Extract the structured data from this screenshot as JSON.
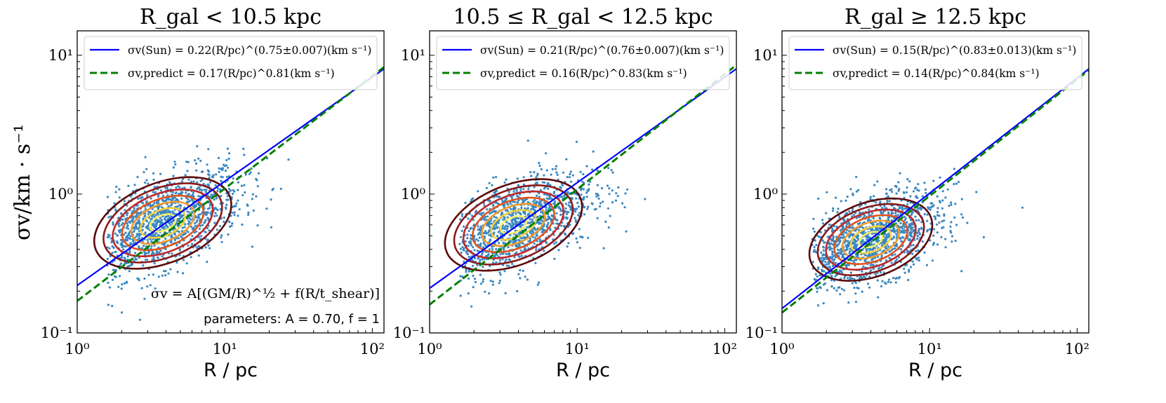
{
  "figure": {
    "ylabel": "σv/km · s⁻¹",
    "colors": {
      "points": "#3a87c0",
      "fit": "#0000ff",
      "predict": "#008000",
      "contours": [
        "#5c0a0a",
        "#8b1a1a",
        "#c0282a",
        "#e2541c",
        "#f39a2e",
        "#f5d13c",
        "#f7ef6a"
      ]
    }
  },
  "chart_data": [
    {
      "type": "scatter",
      "title": "R_gal < 10.5 kpc",
      "xlabel": "R / pc",
      "ylabel": "σv/km · s⁻¹",
      "xscale": "log",
      "yscale": "log",
      "xlim": [
        1,
        120
      ],
      "ylim": [
        0.1,
        15
      ],
      "xticks": [
        "10⁰",
        "10¹",
        "10²"
      ],
      "yticks": [
        "10⁻¹",
        "10⁰",
        "10¹"
      ],
      "legend_position": "top-left",
      "series": [
        {
          "name": "σv(Sun) = 0.22(R/pc)^(0.75±0.007)(km s⁻¹)",
          "kind": "line",
          "style": "solid",
          "color": "#0000ff",
          "amplitude": 0.22,
          "exponent": 0.75
        },
        {
          "name": "σv,predict = 0.17(R/pc)^0.81(km s⁻¹)",
          "kind": "line",
          "style": "dashed",
          "color": "#008000",
          "amplitude": 0.17,
          "exponent": 0.81
        }
      ],
      "scatter_cloud": {
        "center_x": 3.8,
        "center_y": 0.62,
        "sx": 0.27,
        "sy": 0.19,
        "rho": 0.55,
        "xmin": 1.6,
        "xmax": 45
      },
      "annotations": [
        "σv = A[(GM/R)^½ + f(R/t_shear)]",
        "parameters:  A = 0.70,  f = 1"
      ]
    },
    {
      "type": "scatter",
      "title": "10.5 ≤ R_gal < 12.5 kpc",
      "xlabel": "R / pc",
      "xscale": "log",
      "yscale": "log",
      "xlim": [
        1,
        120
      ],
      "ylim": [
        0.1,
        15
      ],
      "xticks": [
        "10⁰",
        "10¹",
        "10²"
      ],
      "yticks": [
        "10⁻¹",
        "10⁰",
        "10¹"
      ],
      "legend_position": "top-left",
      "series": [
        {
          "name": "σv(Sun) = 0.21(R/pc)^(0.76±0.007)(km s⁻¹)",
          "kind": "line",
          "style": "solid",
          "color": "#0000ff",
          "amplitude": 0.21,
          "exponent": 0.76
        },
        {
          "name": "σv,predict = 0.16(R/pc)^0.83(km s⁻¹)",
          "kind": "line",
          "style": "dashed",
          "color": "#008000",
          "amplitude": 0.16,
          "exponent": 0.83
        }
      ],
      "scatter_cloud": {
        "center_x": 3.7,
        "center_y": 0.6,
        "sx": 0.27,
        "sy": 0.19,
        "rho": 0.55,
        "xmin": 1.6,
        "xmax": 60
      }
    },
    {
      "type": "scatter",
      "title": "R_gal ≥ 12.5 kpc",
      "xlabel": "R / pc",
      "xscale": "log",
      "yscale": "log",
      "xlim": [
        1,
        120
      ],
      "ylim": [
        0.1,
        15
      ],
      "xticks": [
        "10⁰",
        "10¹",
        "10²"
      ],
      "yticks": [
        "10⁻¹",
        "10⁰",
        "10¹"
      ],
      "legend_position": "top-left",
      "series": [
        {
          "name": "σv(Sun) = 0.15(R/pc)^(0.83±0.013)(km s⁻¹)",
          "kind": "line",
          "style": "solid",
          "color": "#0000ff",
          "amplitude": 0.15,
          "exponent": 0.83
        },
        {
          "name": "σv,predict = 0.14(R/pc)^0.84(km s⁻¹)",
          "kind": "line",
          "style": "dashed",
          "color": "#008000",
          "amplitude": 0.14,
          "exponent": 0.84
        }
      ],
      "scatter_cloud": {
        "center_x": 4.0,
        "center_y": 0.47,
        "sx": 0.24,
        "sy": 0.17,
        "rho": 0.5,
        "xmin": 1.6,
        "xmax": 55
      }
    }
  ]
}
